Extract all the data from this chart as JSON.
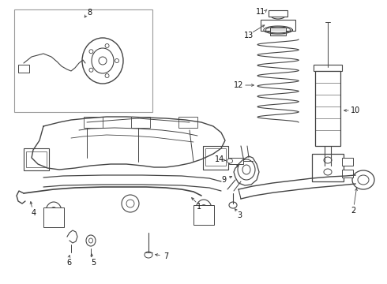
{
  "bg_color": "#ffffff",
  "lc": "#444444",
  "fig_width": 4.9,
  "fig_height": 3.6,
  "dpi": 100
}
